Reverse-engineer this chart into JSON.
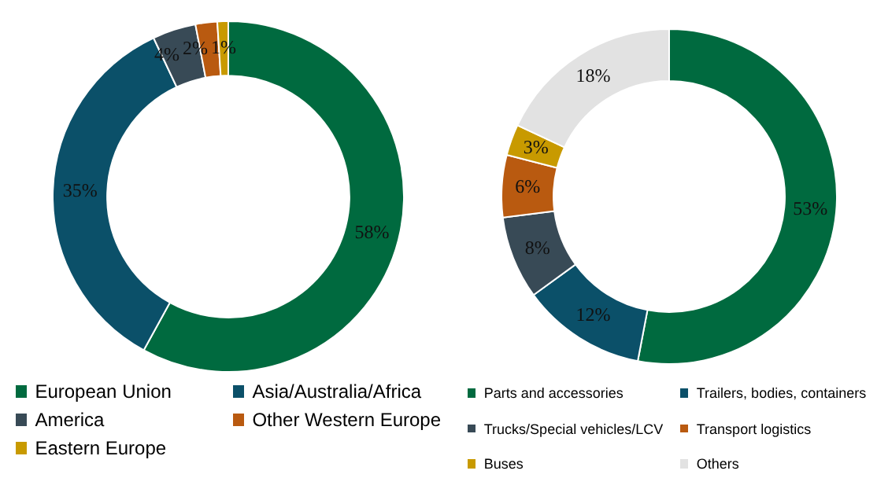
{
  "chart_data": [
    {
      "type": "donut",
      "categories": [
        "European Union",
        "Asia/Australia/Africa",
        "America",
        "Other Western Europe",
        "Eastern Europe"
      ],
      "values": [
        58,
        35,
        4,
        2,
        1
      ],
      "colors": [
        "#006a3f",
        "#0b5069",
        "#384a56",
        "#b95a10",
        "#c89a00"
      ],
      "value_labels": [
        "58%",
        "35%",
        "4%",
        "2%",
        "1%"
      ],
      "legend": "bottom"
    },
    {
      "type": "donut",
      "categories": [
        "Parts and accessories",
        "Trailers, bodies, containers",
        "Trucks/Special vehicles/LCV",
        "Transport logistics",
        "Buses",
        "Others"
      ],
      "values": [
        53,
        12,
        8,
        6,
        3,
        18
      ],
      "colors": [
        "#006a3f",
        "#0b5069",
        "#384a56",
        "#b95a10",
        "#c89a00",
        "#e2e2e2"
      ],
      "value_labels": [
        "53%",
        "12%",
        "8%",
        "6%",
        "3%",
        "18%"
      ],
      "legend": "bottom"
    }
  ]
}
